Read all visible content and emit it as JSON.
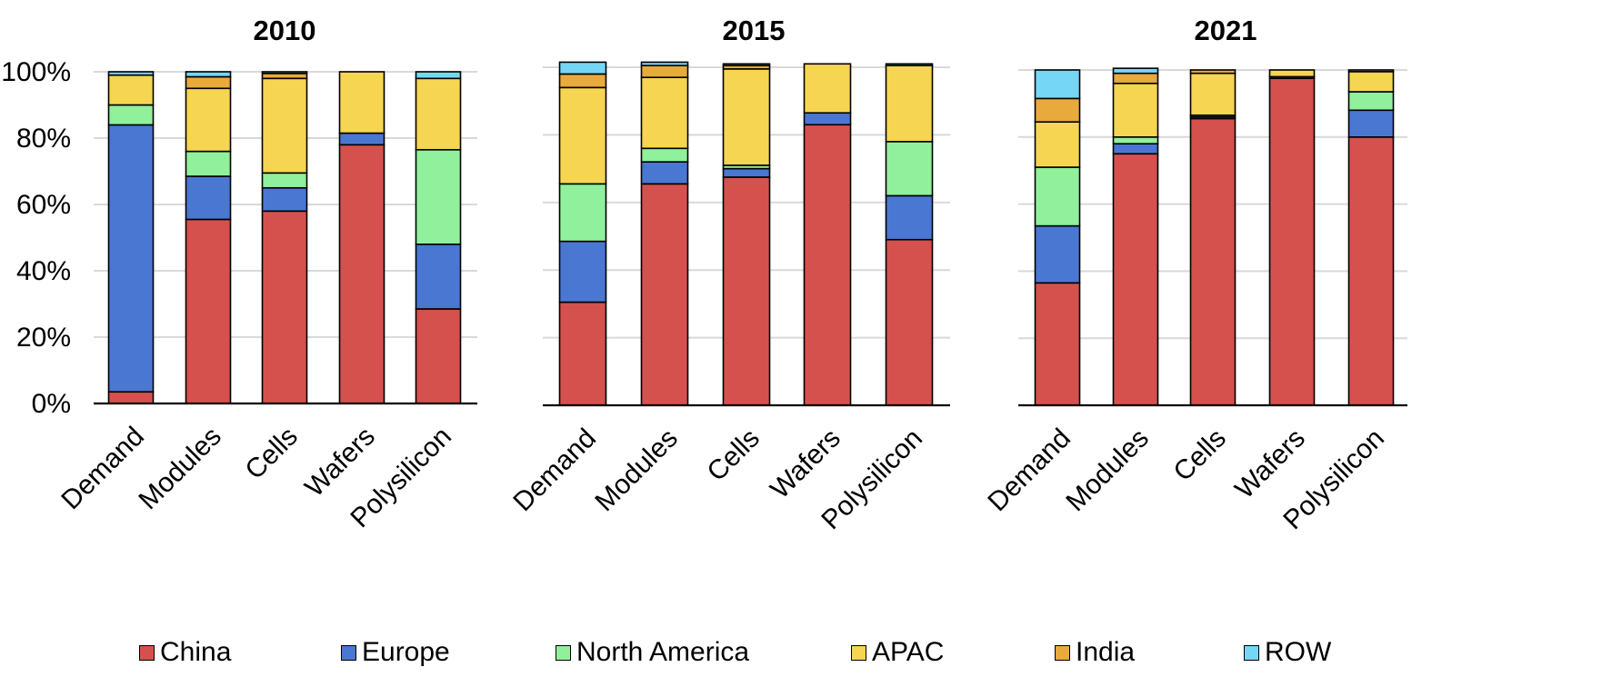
{
  "chart_data": {
    "type": "bar",
    "stacked": true,
    "categories": [
      "Demand",
      "Modules",
      "Cells",
      "Wafers",
      "Polysilicon"
    ],
    "ylim": [
      0,
      100
    ],
    "ytick_labels": [
      "0%",
      "20%",
      "40%",
      "60%",
      "80%",
      "100%"
    ],
    "grid": "horizontal",
    "legend_position": "bottom",
    "legend": [
      {
        "name": "China",
        "color": "#d5514d"
      },
      {
        "name": "Europe",
        "color": "#4a77d1"
      },
      {
        "name": "North America",
        "color": "#91f09b"
      },
      {
        "name": "APAC",
        "color": "#f5d552"
      },
      {
        "name": "India",
        "color": "#e8a93d"
      },
      {
        "name": "ROW",
        "color": "#76d6f5"
      }
    ],
    "panels": [
      {
        "title": "2010",
        "series": [
          {
            "name": "China",
            "values": [
              3.5,
              55.5,
              58,
              78,
              28.5
            ]
          },
          {
            "name": "Europe",
            "values": [
              80.5,
              13,
              7,
              3.5,
              19.5
            ]
          },
          {
            "name": "North America",
            "values": [
              6,
              7.5,
              4.5,
              0,
              28.5
            ]
          },
          {
            "name": "APAC",
            "values": [
              9,
              19,
              28.5,
              18.5,
              21.5
            ]
          },
          {
            "name": "India",
            "values": [
              0,
              3.5,
              1.5,
              0,
              0
            ]
          },
          {
            "name": "ROW",
            "values": [
              1,
              1.5,
              0.5,
              0,
              2
            ]
          }
        ]
      },
      {
        "title": "2015",
        "series": [
          {
            "name": "China",
            "values": [
              30.5,
              65.5,
              67.5,
              83,
              49
            ]
          },
          {
            "name": "Europe",
            "values": [
              18,
              6.5,
              2.5,
              3.5,
              13
            ]
          },
          {
            "name": "North America",
            "values": [
              17,
              4,
              1,
              0,
              16
            ]
          },
          {
            "name": "APAC",
            "values": [
              28.5,
              21,
              28.5,
              14.5,
              22.5
            ]
          },
          {
            "name": "India",
            "values": [
              4,
              3.5,
              1,
              0,
              0
            ]
          },
          {
            "name": "ROW",
            "values": [
              3.5,
              1,
              0.5,
              0,
              0.5
            ]
          }
        ]
      },
      {
        "title": "2021",
        "series": [
          {
            "name": "China",
            "values": [
              36.5,
              75,
              85.5,
              97.5,
              80
            ]
          },
          {
            "name": "Europe",
            "values": [
              17,
              3,
              0.5,
              0.5,
              8
            ]
          },
          {
            "name": "North America",
            "values": [
              17.5,
              2,
              0.5,
              0,
              5.5
            ]
          },
          {
            "name": "APAC",
            "values": [
              13.5,
              16,
              12.5,
              2,
              6
            ]
          },
          {
            "name": "India",
            "values": [
              7,
              3,
              1,
              0,
              0
            ]
          },
          {
            "name": "ROW",
            "values": [
              8.5,
              1.5,
              0,
              0,
              0.5
            ]
          }
        ]
      }
    ]
  }
}
